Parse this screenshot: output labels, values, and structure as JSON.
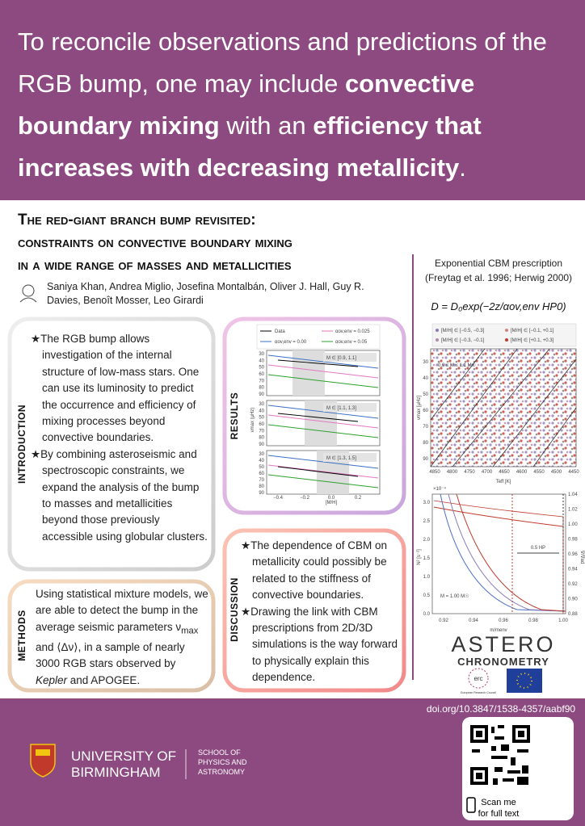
{
  "header": {
    "headline": [
      {
        "text": "To reconcile observations and predictions of the RGB bump, one may include ",
        "bold": false
      },
      {
        "text": "convective boundary mixing",
        "bold": true
      },
      {
        "text": " with an ",
        "bold": false
      },
      {
        "text": "efficiency that increases with decreasing metallicity",
        "bold": true
      },
      {
        "text": ".",
        "bold": false
      }
    ]
  },
  "title": {
    "lines": [
      "The red-giant branch bump revisited:",
      "constraints on convective boundary mixing",
      "in a wide range of masses and metallicities"
    ],
    "authors": "Saniya Khan, Andrea Miglio, Josefina Montalbán, Oliver J. Hall, Guy R. Davies, Benoît Mosser, Leo Girardi"
  },
  "introduction": {
    "label": "INTRODUCTION",
    "bullets": [
      "The RGB bump allows investigation of the internal structure of low-mass stars. One can use its luminosity to predict the occurrence and efficiency of mixing processes beyond convective boundaries.",
      "By combining asteroseismic and spectroscopic constraints, we expand the analysis of the bump to masses and metallicities beyond those previously accessible using globular clusters."
    ]
  },
  "methods": {
    "label": "METHODS",
    "segments": [
      {
        "text": "Using statistical mixture models, we are able to detect the bump in the average seismic parameters ",
        "style": "normal"
      },
      {
        "text": "ν",
        "style": "normal"
      },
      {
        "text": "max",
        "style": "sub"
      },
      {
        "text": " and ⟨Δν⟩, in a sample of nearly 3000 RGB stars observed by ",
        "style": "normal"
      },
      {
        "text": "Kepler",
        "style": "italic"
      },
      {
        "text": " and APOGEE.",
        "style": "normal"
      }
    ]
  },
  "results": {
    "label": "RESULTS",
    "legend": [
      "Data",
      "αov,env = 0.00",
      "αov,env = 0.025",
      "αov,env = 0.05"
    ],
    "panels": [
      "M ∈ [0.9, 1.1]",
      "M ∈ [1.1, 1.3]",
      "M ∈ [1.3, 1.5]"
    ],
    "xlabel": "[M/H]",
    "ylabel": "νmax (μHz)",
    "xticks": [
      "−0.4",
      "−0.2",
      "0.0",
      "0.2"
    ],
    "yticks": [
      "30",
      "40",
      "50",
      "60",
      "70",
      "80",
      "90"
    ]
  },
  "discussion": {
    "label": "DISCUSSION",
    "bullets": [
      "The dependence of CBM on metallicity could possibly be related to the stiffness of convective boundaries.",
      "Drawing the link with CBM prescriptions from 2D/3D simulations is the way forward to physically explain this dependence."
    ]
  },
  "prescription": {
    "lines": [
      "Exponential CBM prescription",
      "(Freytag et al. 1996; Herwig 2000)"
    ],
    "equation": "D = D₀exp(−2z/αov,env HP0)"
  },
  "scatter": {
    "legend": [
      "[M/H] ∈ [−0.5, −0.3]",
      "[M/H] ∈ [−0.3, −0.1]",
      "[M/H] ∈ [−0.1, +0.1]",
      "[M/H] ∈ [+0.1, +0.3]"
    ],
    "mass_range": "0.9 ≤ M ≤ 1.1 M☉",
    "xlabel": "Teff [K]",
    "ylabel": "νmax [μHz]",
    "xticks": [
      "4850",
      "4800",
      "4750",
      "4700",
      "4650",
      "4600",
      "4550",
      "4500",
      "4450"
    ],
    "yticks": [
      "30",
      "40",
      "50",
      "60",
      "70",
      "80",
      "90"
    ]
  },
  "profile": {
    "scale": "×10⁻⁴",
    "yticks": [
      "0.0",
      "0.5",
      "1.0",
      "1.5",
      "2.0",
      "2.5",
      "3.0"
    ],
    "y2ticks": [
      "0.88",
      "0.90",
      "0.92",
      "0.94",
      "0.96",
      "0.98",
      "1.00",
      "1.02",
      "1.04"
    ],
    "xticks": [
      "0.92",
      "0.94",
      "0.96",
      "0.98",
      "1.00"
    ],
    "xlabel": "m/menv",
    "ylabel": "N² [s⁻²]",
    "y2label": "∇/∇ad",
    "annotation": "0.5 HP",
    "mass": "M = 1.00 M☉"
  },
  "logos": {
    "astero": "ASTERO",
    "chronometry": "CHRONOMETRY",
    "erc": "erc",
    "erc_caption": "European Research Council"
  },
  "footer": {
    "university": [
      "UNIVERSITY OF",
      "BIRMINGHAM"
    ],
    "school": [
      "SCHOOL OF",
      "PHYSICS AND",
      "ASTRONOMY"
    ],
    "doi": "doi.org/10.3847/1538-4357/aabf90",
    "qr": [
      "Scan me",
      "for full text"
    ]
  }
}
